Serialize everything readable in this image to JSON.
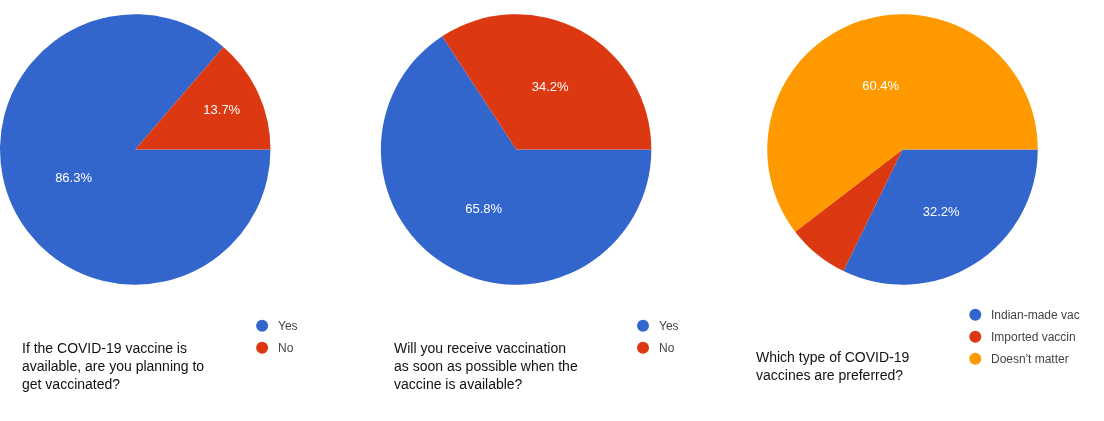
{
  "chart_data": [
    {
      "type": "pie",
      "title": "If the COVID-19 vaccine is available, are you planning to get vaccinated?",
      "categories": [
        "Yes",
        "No"
      ],
      "values": [
        86.3,
        13.7
      ],
      "colors": [
        "#3366cc",
        "#dc3912"
      ],
      "value_labels": [
        "86.3%",
        "13.7%"
      ],
      "legend": "bottom right"
    },
    {
      "type": "pie",
      "title": "Will you receive vaccination as soon as possible when the vaccine is available?",
      "categories": [
        "Yes",
        "No"
      ],
      "values": [
        65.8,
        34.2
      ],
      "colors": [
        "#3366cc",
        "#dc3912"
      ],
      "value_labels": [
        "65.8%",
        "34.2%"
      ],
      "legend": "bottom right"
    },
    {
      "type": "pie",
      "title": "Which type of COVID-19 vaccines are preferred?",
      "categories": [
        "Indian-made vac",
        "Imported vaccin",
        "Doesn't matter"
      ],
      "values": [
        32.2,
        7.4,
        60.4
      ],
      "colors": [
        "#3366cc",
        "#dc3912",
        "#ff9900"
      ],
      "value_labels": [
        "32.2%",
        null,
        "60.4%"
      ],
      "legend": "bottom right"
    }
  ]
}
